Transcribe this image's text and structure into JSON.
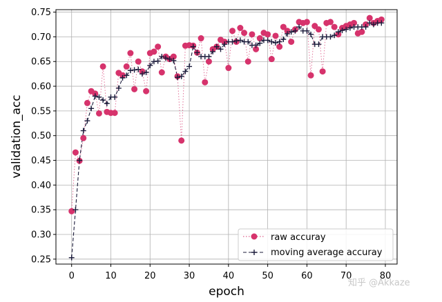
{
  "chart_data": {
    "type": "line",
    "xlabel": "epoch",
    "ylabel": "validation_acc",
    "xlim": [
      -4,
      83
    ],
    "ylim": [
      0.24,
      0.755
    ],
    "xticks": [
      0,
      10,
      20,
      30,
      40,
      50,
      60,
      70,
      80
    ],
    "yticks": [
      0.25,
      0.3,
      0.35,
      0.4,
      0.45,
      0.5,
      0.55,
      0.6,
      0.65,
      0.7,
      0.75
    ],
    "grid": true,
    "legend_position": "lower-right",
    "series": [
      {
        "name": "raw accuray",
        "style": "dotted line with circle markers",
        "color": "#d6336c",
        "x": [
          0,
          1,
          2,
          3,
          4,
          5,
          6,
          7,
          8,
          9,
          10,
          11,
          12,
          13,
          14,
          15,
          16,
          17,
          18,
          19,
          20,
          21,
          22,
          23,
          24,
          25,
          26,
          27,
          28,
          29,
          30,
          31,
          32,
          33,
          34,
          35,
          36,
          37,
          38,
          39,
          40,
          41,
          42,
          43,
          44,
          45,
          46,
          47,
          48,
          49,
          50,
          51,
          52,
          53,
          54,
          55,
          56,
          57,
          58,
          59,
          60,
          61,
          62,
          63,
          64,
          65,
          66,
          67,
          68,
          69,
          70,
          71,
          72,
          73,
          74,
          75,
          76,
          77,
          78,
          79
        ],
        "values": [
          0.347,
          0.466,
          0.449,
          0.495,
          0.566,
          0.59,
          0.585,
          0.545,
          0.64,
          0.548,
          0.546,
          0.546,
          0.627,
          0.622,
          0.64,
          0.667,
          0.594,
          0.65,
          0.63,
          0.59,
          0.667,
          0.67,
          0.68,
          0.628,
          0.66,
          0.655,
          0.66,
          0.62,
          0.49,
          0.682,
          0.683,
          0.682,
          0.668,
          0.697,
          0.608,
          0.65,
          0.675,
          0.68,
          0.694,
          0.69,
          0.637,
          0.712,
          0.69,
          0.718,
          0.708,
          0.65,
          0.705,
          0.675,
          0.697,
          0.708,
          0.705,
          0.655,
          0.702,
          0.68,
          0.72,
          0.712,
          0.69,
          0.715,
          0.73,
          0.728,
          0.73,
          0.622,
          0.722,
          0.715,
          0.63,
          0.728,
          0.73,
          0.72,
          0.705,
          0.718,
          0.722,
          0.725,
          0.728,
          0.707,
          0.71,
          0.725,
          0.738,
          0.728,
          0.732,
          0.735
        ]
      },
      {
        "name": "moving average accuray",
        "style": "dashed line with plus markers",
        "color": "#1a1a3a",
        "x": [
          0,
          1,
          2,
          3,
          4,
          5,
          6,
          7,
          8,
          9,
          10,
          11,
          12,
          13,
          14,
          15,
          16,
          17,
          18,
          19,
          20,
          21,
          22,
          23,
          24,
          25,
          26,
          27,
          28,
          29,
          30,
          31,
          32,
          33,
          34,
          35,
          36,
          37,
          38,
          39,
          40,
          41,
          42,
          43,
          44,
          45,
          46,
          47,
          48,
          49,
          50,
          51,
          52,
          53,
          54,
          55,
          56,
          57,
          58,
          59,
          60,
          61,
          62,
          63,
          64,
          65,
          66,
          67,
          68,
          69,
          70,
          71,
          72,
          73,
          74,
          75,
          76,
          77,
          78,
          79
        ],
        "values": [
          0.253,
          0.35,
          0.45,
          0.51,
          0.53,
          0.555,
          0.58,
          0.578,
          0.572,
          0.565,
          0.578,
          0.578,
          0.596,
          0.617,
          0.622,
          0.632,
          0.633,
          0.634,
          0.625,
          0.628,
          0.642,
          0.65,
          0.651,
          0.66,
          0.657,
          0.655,
          0.652,
          0.618,
          0.62,
          0.63,
          0.64,
          0.68,
          0.668,
          0.66,
          0.66,
          0.66,
          0.67,
          0.68,
          0.675,
          0.685,
          0.69,
          0.69,
          0.692,
          0.693,
          0.69,
          0.69,
          0.683,
          0.683,
          0.687,
          0.693,
          0.693,
          0.69,
          0.688,
          0.69,
          0.695,
          0.706,
          0.71,
          0.712,
          0.72,
          0.712,
          0.712,
          0.705,
          0.685,
          0.685,
          0.7,
          0.7,
          0.7,
          0.703,
          0.71,
          0.713,
          0.715,
          0.718,
          0.72,
          0.72,
          0.72,
          0.72,
          0.728,
          0.725,
          0.728,
          0.728
        ]
      }
    ]
  },
  "watermark": "知乎 @Akkaze"
}
